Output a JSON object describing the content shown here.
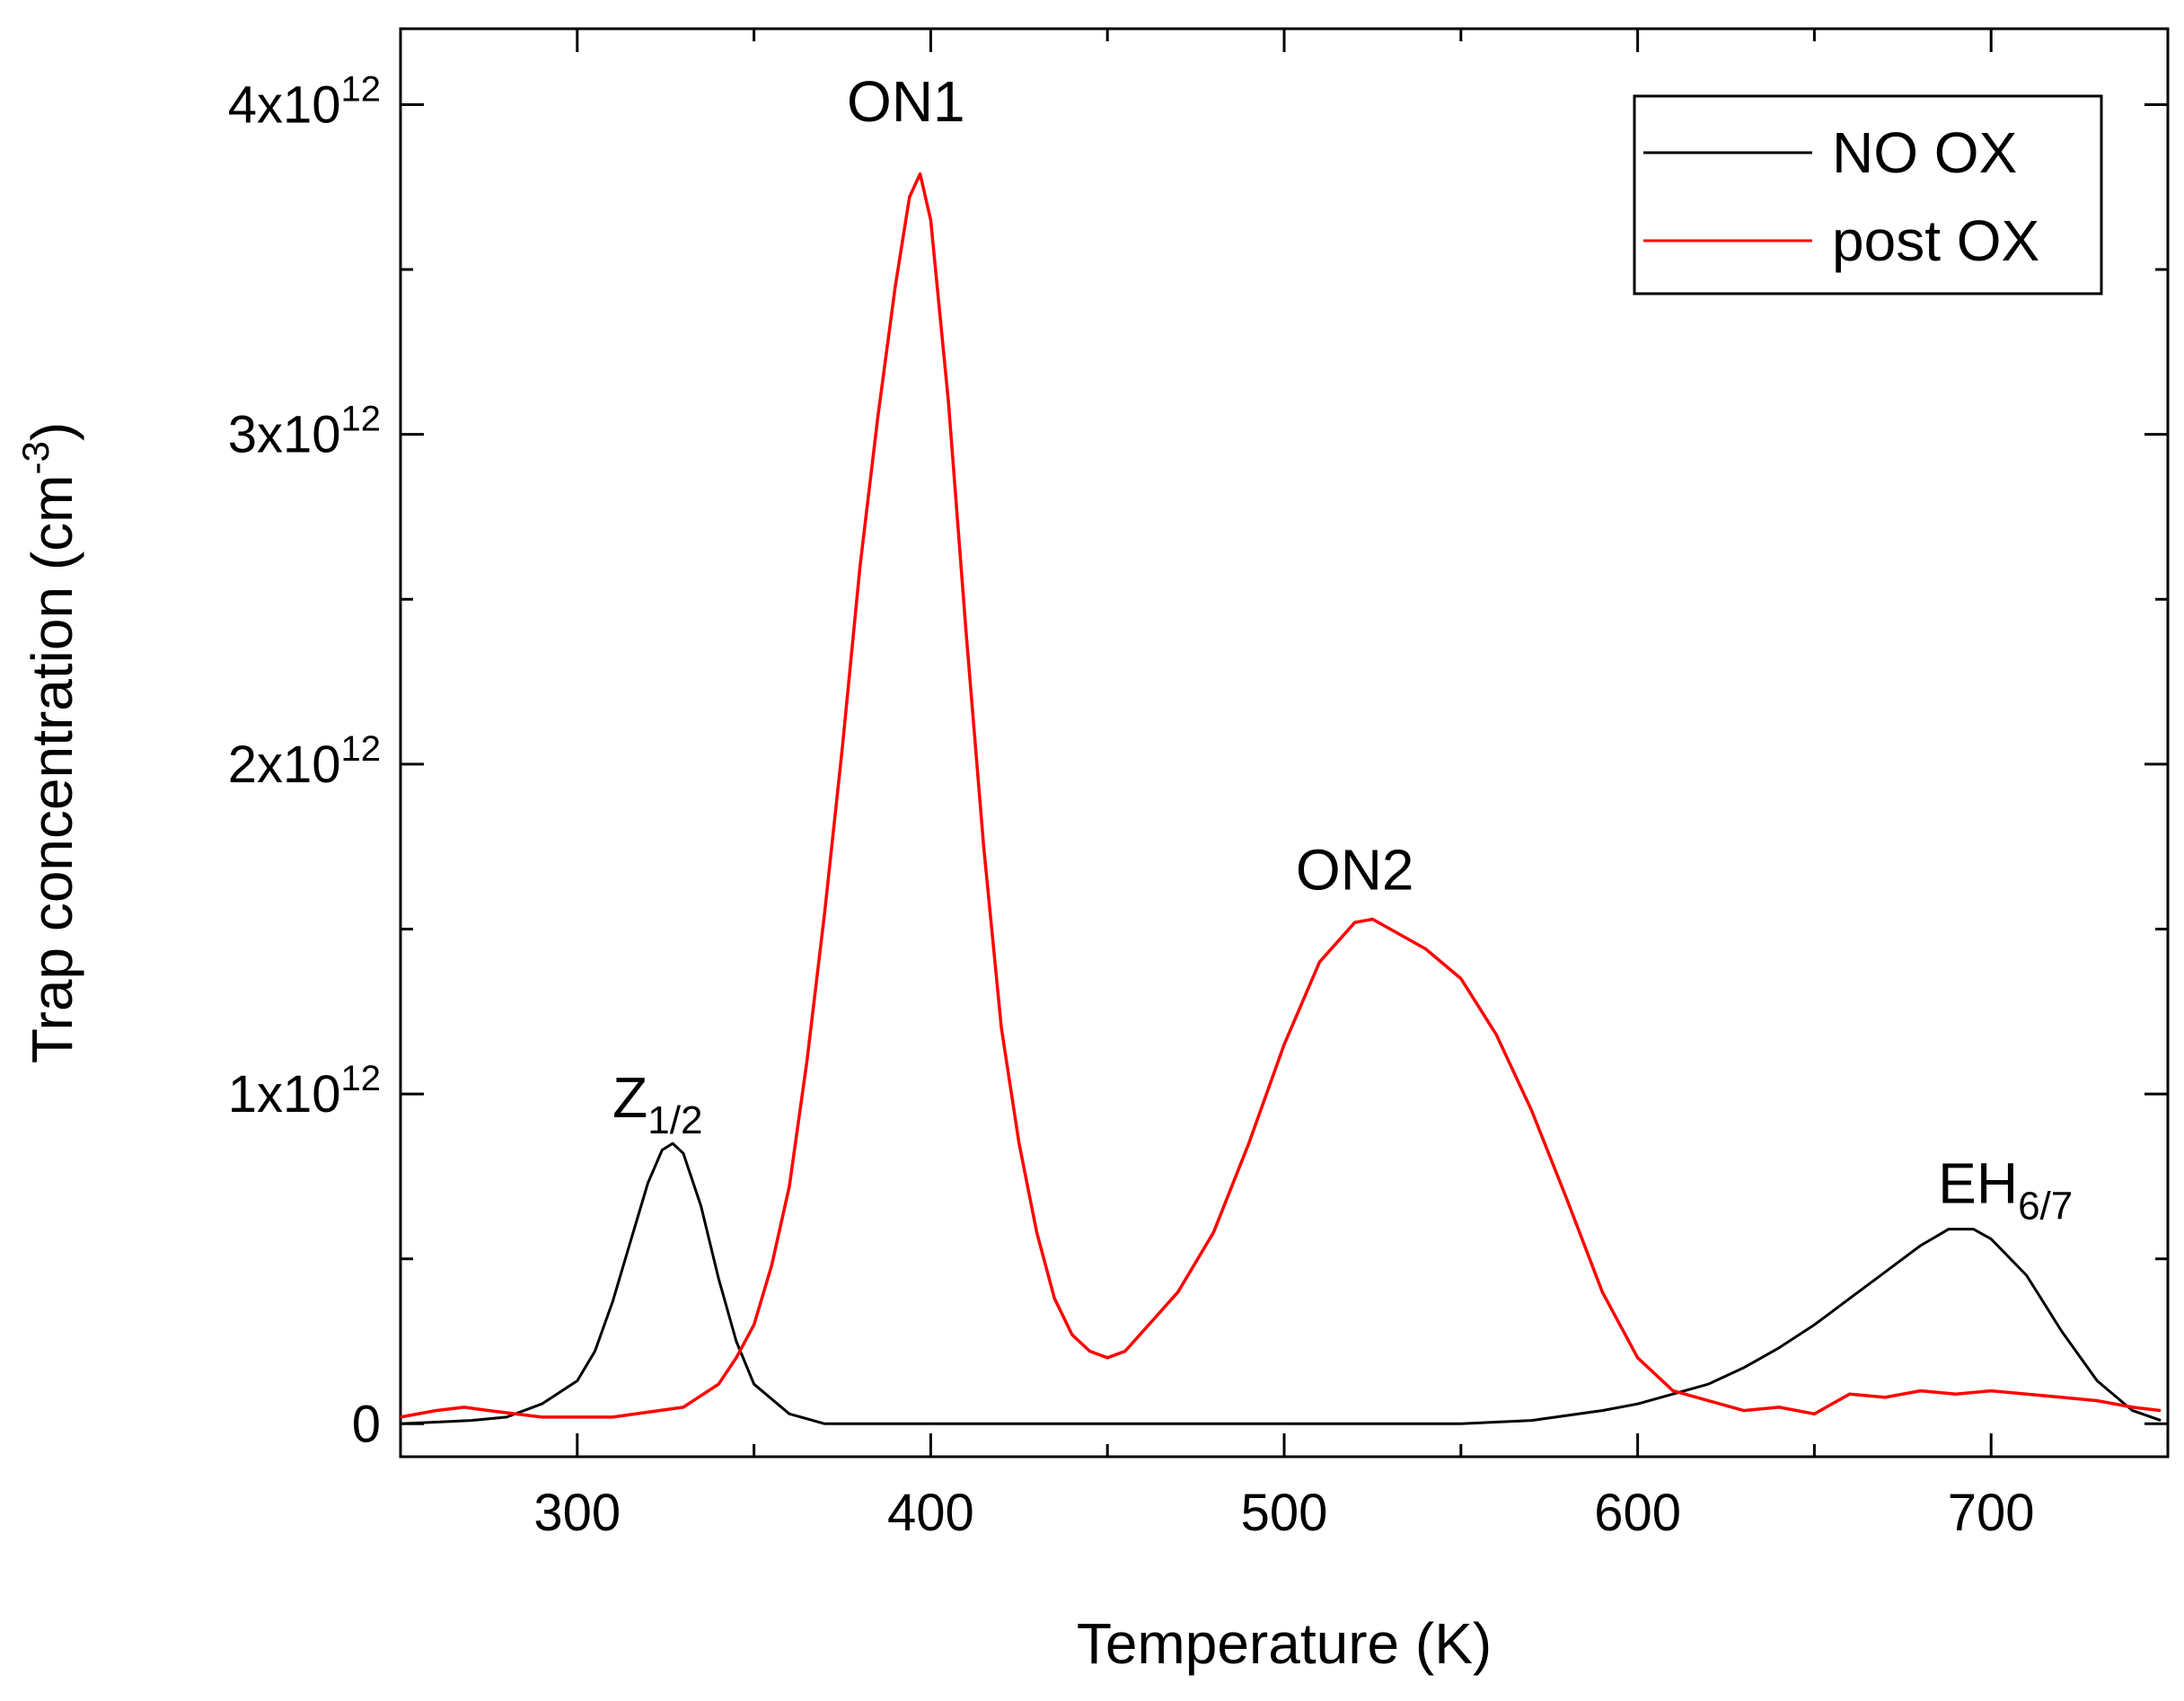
{
  "chart_data": {
    "type": "line",
    "title": "",
    "xlabel": "Temperature (K)",
    "ylabel": {
      "base": "Trap concentration (cm",
      "exponent": "-3",
      "close": ")"
    },
    "xlim": [
      250,
      750
    ],
    "ylim": [
      -0.1,
      4.23
    ],
    "y_multiplier": "1x10^12",
    "x_ticks": [
      {
        "value": 300,
        "label": "300"
      },
      {
        "value": 400,
        "label": "400"
      },
      {
        "value": 500,
        "label": "500"
      },
      {
        "value": 600,
        "label": "600"
      },
      {
        "value": 700,
        "label": "700"
      }
    ],
    "y_ticks": [
      {
        "value": 0,
        "label": "0",
        "exp": ""
      },
      {
        "value": 1,
        "label": "1x10",
        "exp": "12"
      },
      {
        "value": 2,
        "label": "2x10",
        "exp": "12"
      },
      {
        "value": 3,
        "label": "3x10",
        "exp": "12"
      },
      {
        "value": 4,
        "label": "4x10",
        "exp": "12"
      }
    ],
    "legend": {
      "position": "top-right"
    },
    "series": [
      {
        "name": "NO OX",
        "color": "#000000",
        "x": [
          250,
          270,
          280,
          290,
          300,
          305,
          310,
          315,
          320,
          324,
          327,
          330,
          335,
          340,
          345,
          350,
          360,
          370,
          400,
          450,
          500,
          550,
          570,
          590,
          600,
          610,
          620,
          630,
          640,
          650,
          660,
          670,
          680,
          688,
          695,
          700,
          710,
          720,
          730,
          740,
          748
        ],
        "values": [
          0.0,
          0.01,
          0.02,
          0.06,
          0.13,
          0.22,
          0.37,
          0.55,
          0.73,
          0.83,
          0.85,
          0.82,
          0.66,
          0.44,
          0.25,
          0.12,
          0.03,
          0.0,
          0.0,
          0.0,
          0.0,
          0.0,
          0.01,
          0.04,
          0.06,
          0.09,
          0.12,
          0.17,
          0.23,
          0.3,
          0.38,
          0.46,
          0.54,
          0.59,
          0.59,
          0.56,
          0.45,
          0.28,
          0.13,
          0.04,
          0.01
        ]
      },
      {
        "name": "post OX",
        "color": "#ff0000",
        "x": [
          250,
          260,
          268,
          275,
          290,
          310,
          330,
          340,
          345,
          350,
          355,
          360,
          365,
          370,
          375,
          380,
          385,
          390,
          394,
          397,
          400,
          405,
          410,
          415,
          420,
          425,
          430,
          435,
          440,
          445,
          450,
          455,
          460,
          470,
          480,
          490,
          500,
          510,
          520,
          525,
          530,
          540,
          550,
          560,
          570,
          580,
          590,
          600,
          610,
          620,
          630,
          640,
          650,
          660,
          670,
          680,
          690,
          700,
          710,
          720,
          730,
          740,
          748
        ],
        "values": [
          0.02,
          0.04,
          0.05,
          0.04,
          0.02,
          0.02,
          0.05,
          0.12,
          0.2,
          0.3,
          0.48,
          0.72,
          1.1,
          1.55,
          2.05,
          2.6,
          3.05,
          3.45,
          3.72,
          3.79,
          3.65,
          3.1,
          2.4,
          1.75,
          1.2,
          0.85,
          0.58,
          0.38,
          0.27,
          0.22,
          0.2,
          0.22,
          0.28,
          0.4,
          0.58,
          0.85,
          1.15,
          1.4,
          1.52,
          1.53,
          1.5,
          1.44,
          1.35,
          1.18,
          0.95,
          0.68,
          0.4,
          0.2,
          0.1,
          0.07,
          0.04,
          0.05,
          0.03,
          0.09,
          0.08,
          0.1,
          0.09,
          0.1,
          0.09,
          0.08,
          0.07,
          0.05,
          0.04
        ]
      }
    ],
    "annotations": [
      {
        "text": "Z",
        "sub": "1/2",
        "x": 310,
        "y": 0.93
      },
      {
        "text": "ON1",
        "sub": "",
        "x": 393,
        "y": 3.95
      },
      {
        "text": "ON2",
        "sub": "",
        "x": 520,
        "y": 1.62
      },
      {
        "text": "EH",
        "sub": "6/7",
        "x": 685,
        "y": 0.67
      }
    ]
  }
}
